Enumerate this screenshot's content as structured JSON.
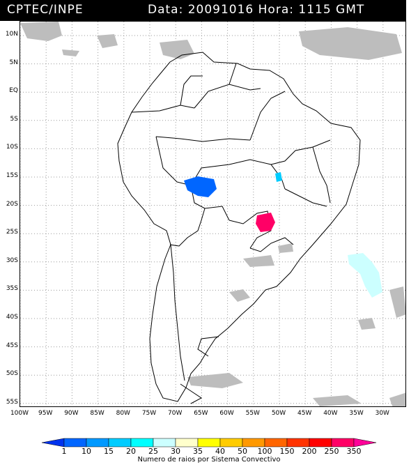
{
  "header": {
    "source": "CPTEC/INPE",
    "datetime": "Data: 20091016 Hora: 1115 GMT"
  },
  "map": {
    "lat_labels": [
      "10N",
      "5N",
      "EQ",
      "5S",
      "10S",
      "15S",
      "20S",
      "25S",
      "30S",
      "35S",
      "40S",
      "45S",
      "50S",
      "55S"
    ],
    "lon_labels": [
      "100W",
      "95W",
      "90W",
      "85W",
      "80W",
      "75W",
      "70W",
      "65W",
      "60W",
      "55W",
      "50W",
      "45W",
      "40W",
      "35W",
      "30W"
    ]
  },
  "legend": {
    "title": "Numero de raios por Sistema Convectivo",
    "values": [
      "1",
      "10",
      "15",
      "20",
      "25",
      "30",
      "35",
      "40",
      "50",
      "100",
      "150",
      "200",
      "250",
      "350"
    ],
    "colors": [
      "#0033ee",
      "#0066ff",
      "#0099ff",
      "#00ccff",
      "#00ffff",
      "#ccffff",
      "#ffffcc",
      "#ffff00",
      "#ffcc00",
      "#ff9900",
      "#ff6600",
      "#ff3300",
      "#ff0000",
      "#ff0066",
      "#ff0099"
    ]
  }
}
